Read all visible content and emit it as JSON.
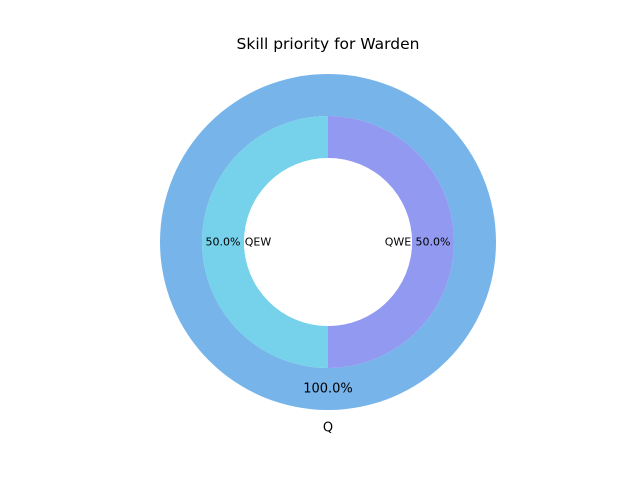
{
  "chart_data": {
    "type": "pie",
    "title": "Skill priority for Warden",
    "rings": [
      {
        "level": "outer",
        "slices": [
          {
            "label": "Q",
            "value": 100.0,
            "pct_label": "100.0%",
            "color": "#76b4ea"
          }
        ]
      },
      {
        "level": "inner",
        "slices": [
          {
            "label": "QWE",
            "value": 50.0,
            "pct_label": "50.0%",
            "color": "#9299f1"
          },
          {
            "label": "QEW",
            "value": 50.0,
            "pct_label": "50.0%",
            "color": "#76d1ea"
          }
        ]
      }
    ],
    "start_angle_deg": 90,
    "direction": "clockwise",
    "center_hole_color": "#ffffff"
  }
}
